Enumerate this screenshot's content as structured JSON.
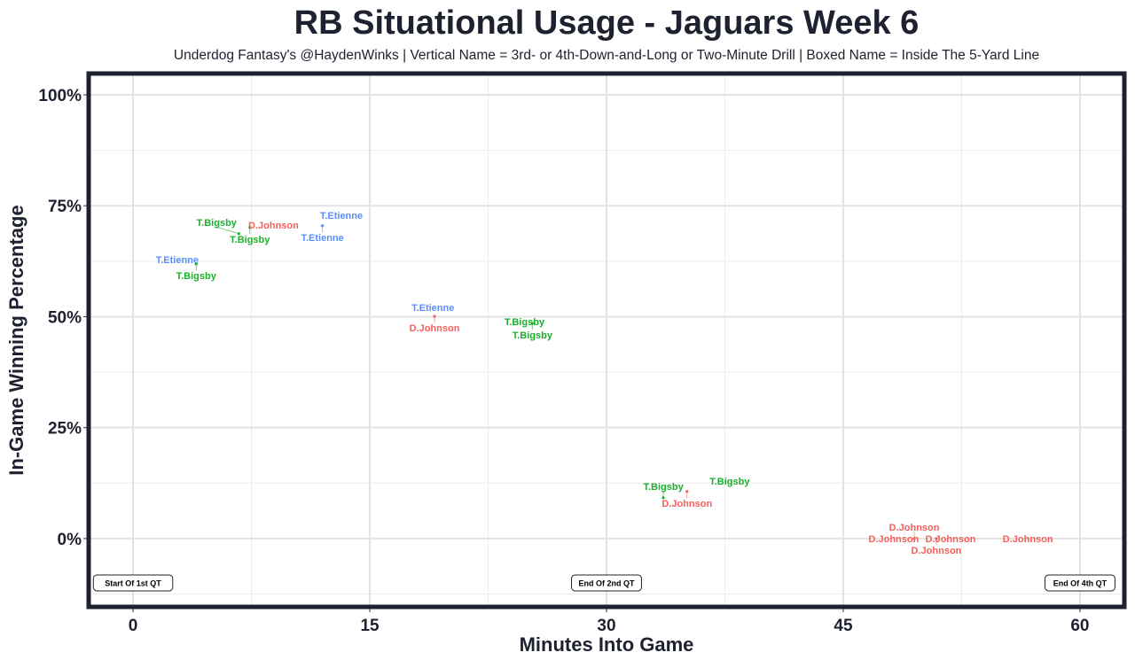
{
  "chart_data": {
    "type": "scatter",
    "title": "RB Situational Usage - Jaguars Week 6",
    "subtitle": "Underdog Fantasy's @HaydenWinks | Vertical Name = 3rd- or 4th-Down-and-Long or Two-Minute Drill | Boxed Name = Inside The 5-Yard Line",
    "xlabel": "Minutes Into Game",
    "ylabel": "In-Game Winning Percentage",
    "xlim": [
      -2.7,
      62.7
    ],
    "ylim": [
      -15,
      104.4
    ],
    "xticks": [
      0,
      15,
      30,
      45,
      60
    ],
    "yticks": [
      0,
      25,
      50,
      75,
      100
    ],
    "ytick_labels": [
      "0%",
      "25%",
      "50%",
      "75%",
      "100%"
    ],
    "grid": true,
    "colors": {
      "T.Etienne": "#5b8ff9",
      "D.Johnson": "#f4605b",
      "T.Bigsby": "#19b02a"
    },
    "points": [
      {
        "label": "T.Etienne",
        "x": 13.2,
        "y": 72.9
      },
      {
        "label": "T.Etienne",
        "x": 12.0,
        "y": 70.5
      },
      {
        "label": "D.Johnson",
        "x": 8.9,
        "y": 70.7
      },
      {
        "label": "T.Bigsby",
        "x": 7.4,
        "y": 70.1
      },
      {
        "label": "T.Bigsby",
        "x": 6.7,
        "y": 68.7
      },
      {
        "label": "T.Etienne",
        "x": 2.8,
        "y": 62.9
      },
      {
        "label": "T.Bigsby",
        "x": 4.0,
        "y": 61.9
      },
      {
        "label": "T.Etienne",
        "x": 19.0,
        "y": 52.1
      },
      {
        "label": "D.Johnson",
        "x": 19.1,
        "y": 50.1
      },
      {
        "label": "T.Bigsby",
        "x": 24.8,
        "y": 48.9
      },
      {
        "label": "T.Bigsby",
        "x": 25.3,
        "y": 48.5
      },
      {
        "label": "T.Bigsby",
        "x": 37.8,
        "y": 13.0
      },
      {
        "label": "D.Johnson",
        "x": 35.1,
        "y": 10.6
      },
      {
        "label": "T.Bigsby",
        "x": 33.6,
        "y": 9.2
      },
      {
        "label": "D.Johnson",
        "x": 48.2,
        "y": 0
      },
      {
        "label": "D.Johnson",
        "x": 49.5,
        "y": 0
      },
      {
        "label": "D.Johnson",
        "x": 50.9,
        "y": 0
      },
      {
        "label": "D.Johnson",
        "x": 51.8,
        "y": 0
      },
      {
        "label": "D.Johnson",
        "x": 56.7,
        "y": 0
      }
    ],
    "annotations": [
      {
        "text": "Start Of 1st QT",
        "x": 0,
        "y": -10
      },
      {
        "text": "End Of 2nd QT",
        "x": 30,
        "y": -10
      },
      {
        "text": "End Of 4th QT",
        "x": 60,
        "y": -10
      }
    ]
  }
}
